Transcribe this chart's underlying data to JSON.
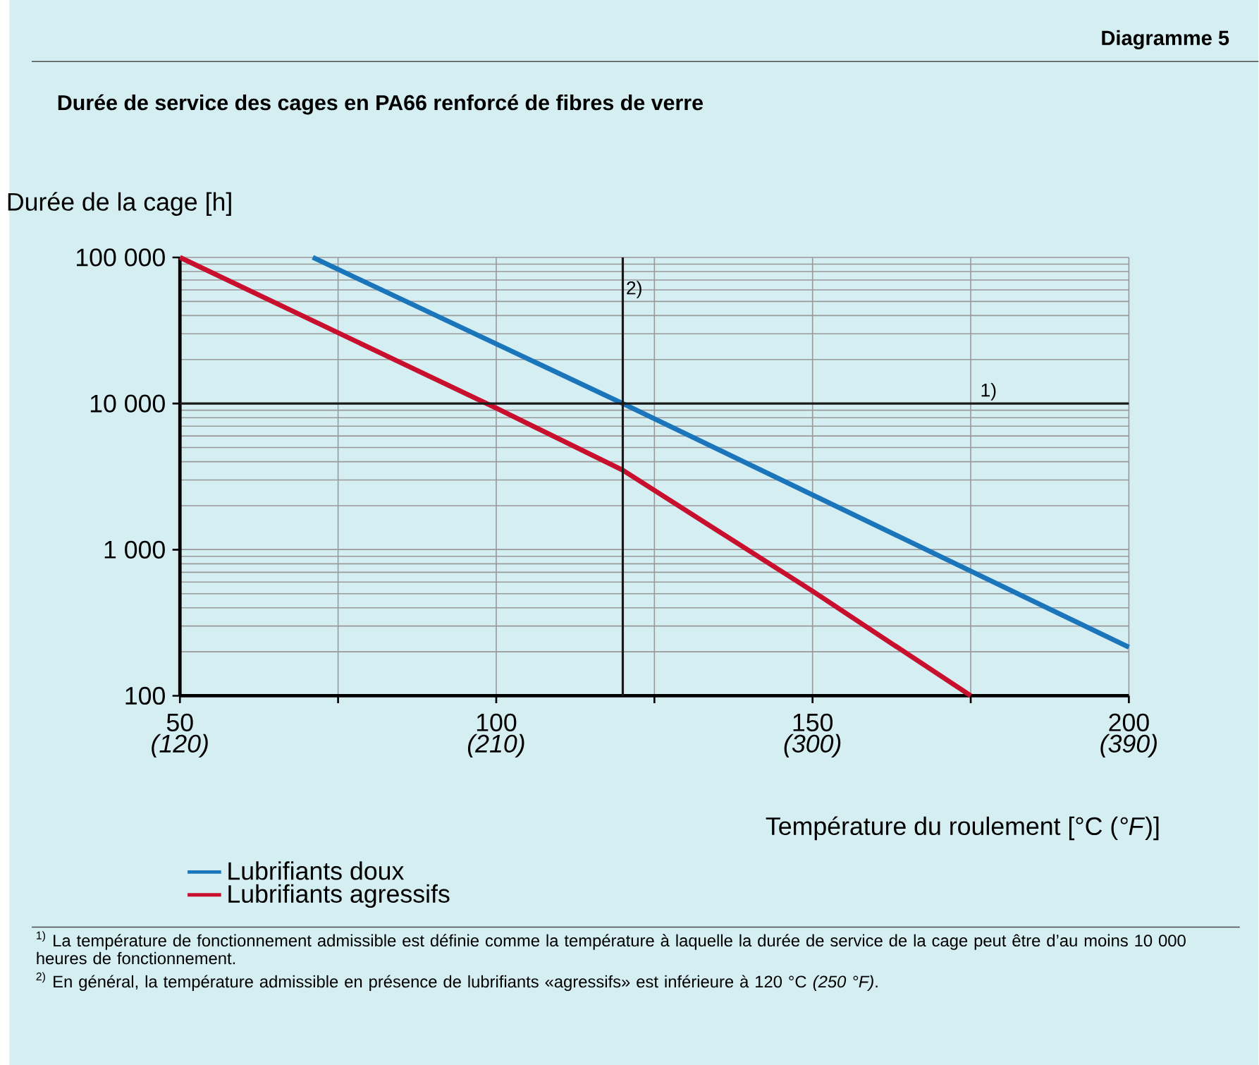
{
  "chart_data": {
    "type": "line",
    "subtitle": "Diagramme 5",
    "title": "Durée de service des cages en PA66 renforcé de fibres de verre",
    "ylabel": "Durée de la cage [h]",
    "xlabel": "Température du roulement [°C (*°F*)]",
    "series": [
      {
        "name": "Lubrifiants doux",
        "color": "#1a75bb",
        "x": [
          71,
          120,
          200
        ],
        "values": [
          100000,
          10000,
          215
        ]
      },
      {
        "name": "Lubrifiants agressifs",
        "color": "#c8102e",
        "x": [
          50,
          100,
          120,
          150,
          175
        ],
        "values": [
          100000,
          9300,
          3500,
          520,
          100
        ]
      }
    ],
    "xlim": [
      50,
      200
    ],
    "ylim": [
      100,
      100000
    ],
    "log": "y",
    "grid": true,
    "legend": "bottom left",
    "line_style": "solid",
    "xticks": [
      50,
      {
        "value": 75,
        "label": null
      },
      100,
      {
        "value": 125,
        "label": null
      },
      150,
      {
        "value": 175,
        "label": null
      },
      200
    ],
    "x2lim": [
      120,
      390
    ],
    "x2ticks": [
      {
        "value": 120,
        "label": "(120)"
      },
      {
        "value": 210,
        "label": "(210)"
      },
      {
        "value": 300,
        "label": "(300)"
      },
      {
        "value": 390,
        "label": "(390)"
      }
    ],
    "yticks": [
      {
        "value": 100,
        "label": "100"
      },
      {
        "value": 1000,
        "label": "1 000"
      },
      {
        "value": 10000,
        "label": "10 000"
      },
      {
        "value": 100000,
        "label": "100 000"
      }
    ],
    "ref_lines": [
      {
        "axis": "y",
        "value": 10000,
        "color": "#1a1a1a"
      },
      {
        "axis": "x",
        "value": 120,
        "color": "#1a1a1a"
      }
    ],
    "annotations": [
      {
        "text": "1)",
        "x": 176,
        "y": 10000
      },
      {
        "text": "2)",
        "x": 120,
        "y": 50000
      },
      "$^{1)}$ La température de fonctionnement admissible est définie comme la température à laquelle la durée de service de la cage peut être d’au moins 10 000 heures de fonctionnement.",
      "$^{2)}$ En général, la température admissible en présence de lubrifiants «agressifs» est inférieure à 120 °C *(250 °F)*."
    ]
  }
}
